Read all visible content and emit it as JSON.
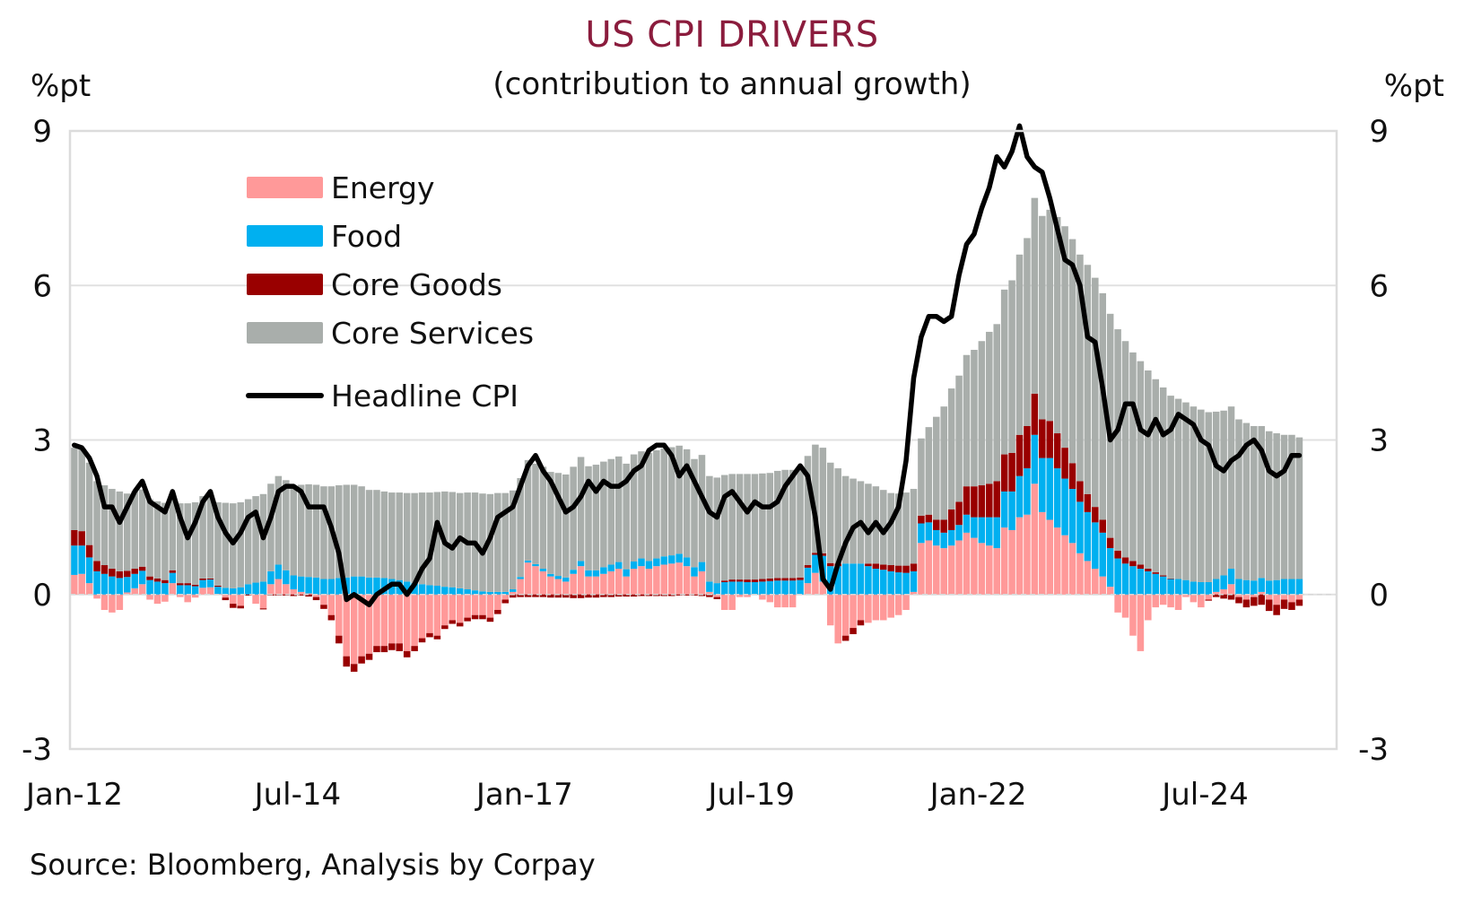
{
  "chart_data": {
    "type": "bar",
    "subtype": "stacked-bar-with-line",
    "title": "US CPI DRIVERS",
    "subtitle": "(contribution to annual growth)",
    "ylabel_left": "%pt",
    "ylabel_right": "%pt",
    "ylim": [
      -3,
      9
    ],
    "yticks": [
      9,
      6,
      3,
      0,
      -3
    ],
    "ytick_labels": [
      "9",
      "6",
      "3",
      "0",
      "-3"
    ],
    "xtick_labels": [
      "Jan-12",
      "Jul-14",
      "Jan-17",
      "Jul-19",
      "Jan-22",
      "Jul-24"
    ],
    "xtick_index": [
      0,
      30,
      60,
      90,
      120,
      150
    ],
    "x_start": "Jan-12",
    "x_end": "Jul-25",
    "frequency": "monthly",
    "grid": true,
    "legend_position": "top-left",
    "source": "Source: Bloomberg, Analysis by Corpay",
    "colors": {
      "energy": "#ff9999",
      "food": "#00b0f0",
      "core_goods": "#990000",
      "core_services": "#a9aeab",
      "headline": "#000000",
      "title": "#8b1c3d"
    },
    "legend": [
      {
        "key": "energy",
        "label": "Energy",
        "kind": "bar"
      },
      {
        "key": "food",
        "label": "Food",
        "kind": "bar"
      },
      {
        "key": "core_goods",
        "label": "Core Goods",
        "kind": "bar"
      },
      {
        "key": "core_services",
        "label": "Core Services",
        "kind": "bar"
      },
      {
        "key": "headline",
        "label": "Headline CPI",
        "kind": "line"
      }
    ],
    "series": [
      {
        "key": "energy",
        "name": "Energy",
        "values": [
          0.38,
          0.4,
          0.22,
          -0.08,
          -0.3,
          -0.35,
          -0.3,
          0.04,
          0.12,
          0.2,
          -0.1,
          -0.18,
          -0.14,
          0.22,
          -0.05,
          -0.15,
          -0.06,
          0.13,
          0.14,
          0.01,
          -0.06,
          -0.18,
          -0.22,
          0.0,
          -0.18,
          -0.27,
          0.2,
          0.3,
          0.2,
          0.1,
          0.05,
          0.02,
          -0.05,
          -0.2,
          -0.4,
          -0.8,
          -1.2,
          -1.35,
          -1.2,
          -1.15,
          -1.0,
          -1.0,
          -0.95,
          -0.95,
          -1.1,
          -1.0,
          -0.85,
          -0.75,
          -0.8,
          -0.6,
          -0.5,
          -0.55,
          -0.45,
          -0.4,
          -0.4,
          -0.45,
          -0.3,
          -0.1,
          0.05,
          0.3,
          0.62,
          0.55,
          0.45,
          0.35,
          0.3,
          0.25,
          0.4,
          0.55,
          0.35,
          0.35,
          0.4,
          0.45,
          0.5,
          0.35,
          0.5,
          0.55,
          0.5,
          0.55,
          0.58,
          0.6,
          0.62,
          0.55,
          0.35,
          0.45,
          0.05,
          -0.05,
          -0.3,
          -0.3,
          -0.05,
          -0.05,
          0.0,
          -0.1,
          -0.15,
          -0.25,
          -0.25,
          -0.25,
          0.0,
          0.22,
          0.42,
          0.25,
          -0.6,
          -0.95,
          -0.8,
          -0.65,
          -0.5,
          -0.55,
          -0.5,
          -0.5,
          -0.45,
          -0.4,
          -0.3,
          0.05,
          1.0,
          1.05,
          0.95,
          0.9,
          0.95,
          1.05,
          1.2,
          1.1,
          1.0,
          0.95,
          0.9,
          1.3,
          1.25,
          1.5,
          1.55,
          2.15,
          1.6,
          1.45,
          1.3,
          1.15,
          1.0,
          0.8,
          0.65,
          0.5,
          0.35,
          0.15,
          -0.35,
          -0.45,
          -0.8,
          -1.1,
          -0.5,
          -0.25,
          -0.2,
          -0.25,
          -0.3,
          -0.05,
          -0.15,
          -0.25,
          -0.1,
          0.05,
          0.1,
          0.2,
          -0.05,
          -0.1,
          -0.05,
          0.05,
          -0.1,
          -0.2,
          -0.1,
          -0.15,
          -0.1,
          -0.05,
          -0.08,
          -0.05,
          -0.05,
          -0.05,
          -0.08
        ]
      },
      {
        "key": "food",
        "name": "Food",
        "values": [
          0.57,
          0.55,
          0.5,
          0.45,
          0.4,
          0.35,
          0.32,
          0.3,
          0.28,
          0.26,
          0.28,
          0.25,
          0.22,
          0.2,
          0.18,
          0.18,
          0.16,
          0.15,
          0.15,
          0.14,
          0.13,
          0.12,
          0.14,
          0.2,
          0.23,
          0.25,
          0.25,
          0.28,
          0.27,
          0.27,
          0.3,
          0.32,
          0.33,
          0.3,
          0.3,
          0.32,
          0.33,
          0.35,
          0.35,
          0.33,
          0.33,
          0.32,
          0.3,
          0.28,
          0.25,
          0.22,
          0.2,
          0.18,
          0.17,
          0.15,
          0.14,
          0.12,
          0.1,
          0.08,
          0.06,
          0.05,
          0.05,
          0.05,
          0.05,
          0.04,
          0.04,
          0.04,
          0.05,
          0.05,
          0.06,
          0.08,
          0.08,
          0.1,
          0.12,
          0.12,
          0.13,
          0.13,
          0.13,
          0.14,
          0.14,
          0.15,
          0.15,
          0.15,
          0.16,
          0.16,
          0.17,
          0.17,
          0.18,
          0.18,
          0.2,
          0.22,
          0.24,
          0.25,
          0.25,
          0.24,
          0.24,
          0.25,
          0.26,
          0.27,
          0.27,
          0.27,
          0.28,
          0.3,
          0.35,
          0.5,
          0.55,
          0.55,
          0.6,
          0.6,
          0.6,
          0.55,
          0.5,
          0.48,
          0.45,
          0.43,
          0.42,
          0.4,
          0.38,
          0.35,
          0.3,
          0.3,
          0.3,
          0.3,
          0.35,
          0.4,
          0.5,
          0.55,
          0.6,
          0.7,
          0.75,
          0.8,
          0.9,
          0.95,
          1.05,
          1.2,
          1.15,
          1.1,
          1.05,
          1.0,
          0.95,
          0.9,
          0.85,
          0.75,
          0.7,
          0.6,
          0.55,
          0.5,
          0.45,
          0.4,
          0.35,
          0.3,
          0.3,
          0.28,
          0.25,
          0.24,
          0.24,
          0.25,
          0.27,
          0.3,
          0.3,
          0.28,
          0.27,
          0.27,
          0.27,
          0.28,
          0.3,
          0.3,
          0.3,
          0.3,
          0.33,
          0.33,
          0.33,
          0.33,
          0.35,
          0.35
        ]
      },
      {
        "key": "core_goods",
        "name": "Core Goods",
        "values": [
          0.3,
          0.28,
          0.24,
          0.2,
          0.17,
          0.15,
          0.13,
          0.12,
          0.1,
          0.08,
          0.07,
          0.06,
          0.06,
          0.05,
          0.04,
          0.04,
          0.03,
          0.03,
          0.02,
          0.02,
          -0.05,
          -0.08,
          -0.05,
          -0.02,
          0.0,
          -0.02,
          -0.02,
          -0.02,
          -0.02,
          -0.03,
          -0.02,
          -0.04,
          -0.06,
          -0.08,
          -0.1,
          -0.15,
          -0.2,
          -0.15,
          -0.14,
          -0.12,
          -0.12,
          -0.12,
          -0.13,
          -0.15,
          -0.12,
          -0.1,
          -0.08,
          -0.08,
          -0.07,
          -0.07,
          -0.07,
          -0.07,
          -0.07,
          -0.08,
          -0.08,
          -0.08,
          -0.08,
          -0.07,
          -0.06,
          -0.05,
          -0.05,
          -0.05,
          -0.05,
          -0.06,
          -0.06,
          -0.06,
          -0.07,
          -0.07,
          -0.06,
          -0.06,
          -0.05,
          -0.05,
          -0.04,
          -0.04,
          -0.04,
          -0.03,
          -0.03,
          -0.03,
          -0.03,
          -0.03,
          -0.02,
          -0.02,
          -0.02,
          -0.03,
          -0.05,
          -0.04,
          0.03,
          0.04,
          0.04,
          0.05,
          0.05,
          0.05,
          0.05,
          0.05,
          0.05,
          0.05,
          0.05,
          0.05,
          0.04,
          0.05,
          0.06,
          0.05,
          -0.1,
          -0.12,
          -0.1,
          0.05,
          0.1,
          0.1,
          0.12,
          0.13,
          0.14,
          0.15,
          0.15,
          0.15,
          0.2,
          0.25,
          0.4,
          0.45,
          0.55,
          0.6,
          0.62,
          0.65,
          0.7,
          0.72,
          0.75,
          0.8,
          0.82,
          0.8,
          0.75,
          0.72,
          0.68,
          0.6,
          0.5,
          0.4,
          0.35,
          0.3,
          0.25,
          0.2,
          0.15,
          0.12,
          0.1,
          0.08,
          0.05,
          0.03,
          0.02,
          0.01,
          0.0,
          0.0,
          0.0,
          0.0,
          -0.02,
          -0.05,
          -0.08,
          -0.1,
          -0.12,
          -0.15,
          -0.17,
          -0.2,
          -0.22,
          -0.2,
          -0.18,
          -0.15,
          -0.12,
          -0.1,
          -0.08,
          -0.06,
          -0.04,
          -0.02,
          0.02,
          0.05,
          0.08
        ]
      },
      {
        "key": "core_services",
        "name": "Core Services",
        "values": [
          1.6,
          1.6,
          1.6,
          1.55,
          1.55,
          1.55,
          1.55,
          1.5,
          1.5,
          1.5,
          1.5,
          1.5,
          1.5,
          1.5,
          1.55,
          1.55,
          1.6,
          1.6,
          1.6,
          1.62,
          1.65,
          1.65,
          1.65,
          1.65,
          1.68,
          1.7,
          1.7,
          1.72,
          1.75,
          1.75,
          1.78,
          1.8,
          1.8,
          1.8,
          1.8,
          1.8,
          1.8,
          1.78,
          1.75,
          1.7,
          1.7,
          1.68,
          1.68,
          1.7,
          1.72,
          1.75,
          1.78,
          1.8,
          1.82,
          1.85,
          1.85,
          1.85,
          1.88,
          1.9,
          1.9,
          1.9,
          1.92,
          1.92,
          1.92,
          1.92,
          1.95,
          1.95,
          1.98,
          1.98,
          2.0,
          2.0,
          2.0,
          2.02,
          2.02,
          2.05,
          2.05,
          2.05,
          2.05,
          2.05,
          2.08,
          2.08,
          2.1,
          2.1,
          2.1,
          2.1,
          2.1,
          2.1,
          2.1,
          2.08,
          2.05,
          2.05,
          2.05,
          2.05,
          2.05,
          2.05,
          2.05,
          2.05,
          2.05,
          2.08,
          2.1,
          2.1,
          2.12,
          2.12,
          2.1,
          2.05,
          1.95,
          1.85,
          1.7,
          1.65,
          1.6,
          1.55,
          1.5,
          1.45,
          1.4,
          1.4,
          1.42,
          1.45,
          1.5,
          1.7,
          2.0,
          2.2,
          2.35,
          2.45,
          2.55,
          2.65,
          2.8,
          2.95,
          3.05,
          3.2,
          3.35,
          3.5,
          3.65,
          3.8,
          3.95,
          4.1,
          4.2,
          4.3,
          4.35,
          4.4,
          4.45,
          4.45,
          4.4,
          4.35,
          4.3,
          4.2,
          4.05,
          3.95,
          3.85,
          3.75,
          3.65,
          3.55,
          3.5,
          3.45,
          3.4,
          3.35,
          3.3,
          3.25,
          3.2,
          3.15,
          3.1,
          3.05,
          3.0,
          2.95,
          2.9,
          2.85,
          2.8,
          2.8,
          2.75,
          2.75,
          2.7,
          2.7,
          2.7,
          2.7,
          2.7
        ]
      },
      {
        "key": "headline",
        "name": "Headline CPI",
        "values": [
          2.9,
          2.85,
          2.65,
          2.3,
          1.7,
          1.7,
          1.4,
          1.7,
          2.0,
          2.2,
          1.8,
          1.7,
          1.6,
          2.0,
          1.5,
          1.1,
          1.4,
          1.8,
          2.0,
          1.5,
          1.2,
          1.0,
          1.2,
          1.5,
          1.6,
          1.1,
          1.5,
          2.0,
          2.1,
          2.1,
          2.0,
          1.7,
          1.7,
          1.7,
          1.3,
          0.8,
          -0.1,
          0.0,
          -0.1,
          -0.2,
          0.0,
          0.1,
          0.2,
          0.2,
          0.0,
          0.2,
          0.5,
          0.7,
          1.4,
          1.0,
          0.9,
          1.1,
          1.0,
          1.0,
          0.8,
          1.1,
          1.5,
          1.6,
          1.7,
          2.1,
          2.5,
          2.7,
          2.4,
          2.2,
          1.9,
          1.6,
          1.7,
          1.9,
          2.2,
          2.0,
          2.2,
          2.1,
          2.1,
          2.2,
          2.4,
          2.5,
          2.8,
          2.9,
          2.9,
          2.7,
          2.3,
          2.5,
          2.2,
          1.9,
          1.6,
          1.5,
          1.9,
          2.0,
          1.8,
          1.6,
          1.8,
          1.7,
          1.7,
          1.8,
          2.1,
          2.3,
          2.5,
          2.3,
          1.5,
          0.3,
          0.1,
          0.6,
          1.0,
          1.3,
          1.4,
          1.2,
          1.4,
          1.2,
          1.4,
          1.7,
          2.6,
          4.2,
          5.0,
          5.4,
          5.4,
          5.3,
          5.4,
          6.2,
          6.8,
          7.0,
          7.5,
          7.9,
          8.5,
          8.3,
          8.6,
          9.1,
          8.5,
          8.3,
          8.2,
          7.7,
          7.1,
          6.5,
          6.4,
          6.0,
          5.0,
          4.9,
          4.0,
          3.0,
          3.2,
          3.7,
          3.7,
          3.2,
          3.1,
          3.4,
          3.1,
          3.2,
          3.5,
          3.4,
          3.3,
          3.0,
          2.9,
          2.5,
          2.4,
          2.6,
          2.7,
          2.9,
          3.0,
          2.8,
          2.4,
          2.3,
          2.4,
          2.7,
          2.7
        ]
      }
    ]
  }
}
